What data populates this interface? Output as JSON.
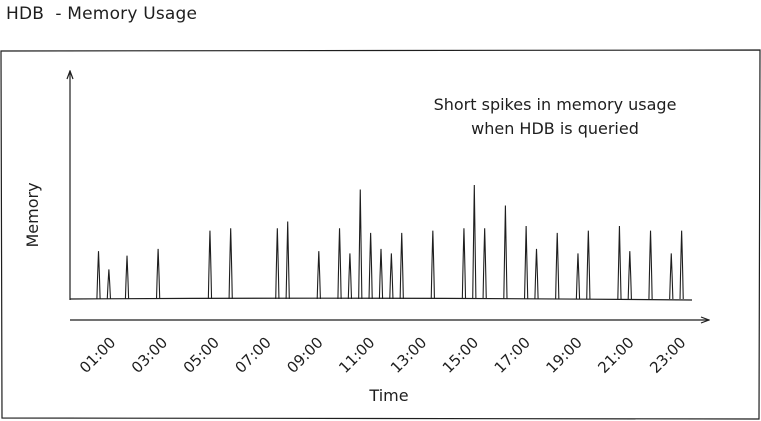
{
  "page": {
    "title": "HDB  - Memory Usage"
  },
  "chart_data": {
    "type": "line",
    "title": "HDB  - Memory Usage",
    "xlabel": "Time",
    "ylabel": "Memory",
    "x_ticks": [
      "01:00",
      "03:00",
      "05:00",
      "07:00",
      "09:00",
      "11:00",
      "13:00",
      "15:00",
      "17:00",
      "19:00",
      "21:00",
      "23:00"
    ],
    "x_tick_hours": [
      1,
      3,
      5,
      7,
      9,
      11,
      13,
      15,
      17,
      19,
      21,
      23
    ],
    "xlim": [
      0,
      24
    ],
    "ylim": [
      0,
      1
    ],
    "annotation": [
      "Short spikes in memory usage",
      "when HDB is queried"
    ],
    "baseline_value": 0,
    "spikes": [
      {
        "hour": 1.1,
        "value": 0.21
      },
      {
        "hour": 1.5,
        "value": 0.13
      },
      {
        "hour": 2.2,
        "value": 0.19
      },
      {
        "hour": 3.4,
        "value": 0.22
      },
      {
        "hour": 5.4,
        "value": 0.3
      },
      {
        "hour": 6.2,
        "value": 0.31
      },
      {
        "hour": 8.0,
        "value": 0.31
      },
      {
        "hour": 8.4,
        "value": 0.34
      },
      {
        "hour": 9.6,
        "value": 0.21
      },
      {
        "hour": 10.4,
        "value": 0.31
      },
      {
        "hour": 10.8,
        "value": 0.2
      },
      {
        "hour": 11.2,
        "value": 0.48
      },
      {
        "hour": 11.6,
        "value": 0.29
      },
      {
        "hour": 12.0,
        "value": 0.22
      },
      {
        "hour": 12.4,
        "value": 0.2
      },
      {
        "hour": 12.8,
        "value": 0.29
      },
      {
        "hour": 14.0,
        "value": 0.3
      },
      {
        "hour": 15.2,
        "value": 0.31
      },
      {
        "hour": 15.6,
        "value": 0.5
      },
      {
        "hour": 16.0,
        "value": 0.31
      },
      {
        "hour": 16.8,
        "value": 0.41
      },
      {
        "hour": 17.6,
        "value": 0.32
      },
      {
        "hour": 18.0,
        "value": 0.22
      },
      {
        "hour": 18.8,
        "value": 0.29
      },
      {
        "hour": 19.6,
        "value": 0.2
      },
      {
        "hour": 20.0,
        "value": 0.3
      },
      {
        "hour": 21.2,
        "value": 0.32
      },
      {
        "hour": 21.6,
        "value": 0.21
      },
      {
        "hour": 22.4,
        "value": 0.3
      },
      {
        "hour": 23.2,
        "value": 0.2
      },
      {
        "hour": 23.6,
        "value": 0.3
      }
    ]
  }
}
